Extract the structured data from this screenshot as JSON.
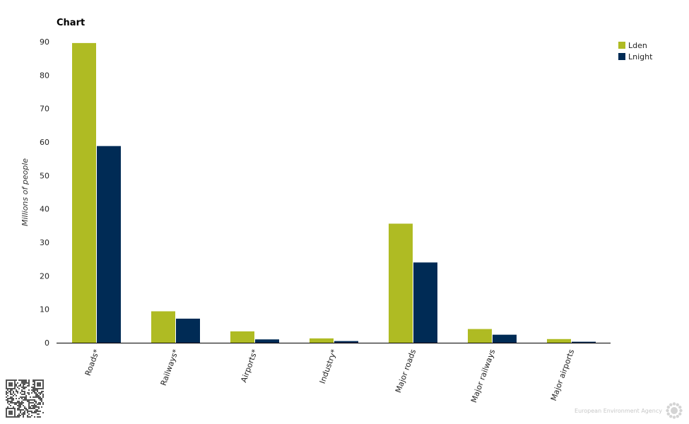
{
  "title": "Chart",
  "footer": {
    "agency": "European Environment Agency"
  },
  "chart_data": {
    "type": "bar",
    "categories": [
      "Roads*",
      "Railways*",
      "Airports*",
      "Industry*",
      "Major roads",
      "Major railways",
      "Major airports"
    ],
    "series": [
      {
        "name": "Lden",
        "color": "#afbb23",
        "values": [
          89.6,
          9.4,
          3.4,
          1.3,
          35.6,
          4.1,
          1.1
        ]
      },
      {
        "name": "Lnight",
        "color": "#002b55",
        "values": [
          58.8,
          7.2,
          1.0,
          0.5,
          24.0,
          2.4,
          0.3
        ]
      }
    ],
    "ylabel": "Millions of people",
    "ylim": [
      0,
      90
    ],
    "yticks": [
      0,
      10,
      20,
      30,
      40,
      50,
      60,
      70,
      80,
      90
    ],
    "grid": false,
    "legend_position": "top-right"
  }
}
